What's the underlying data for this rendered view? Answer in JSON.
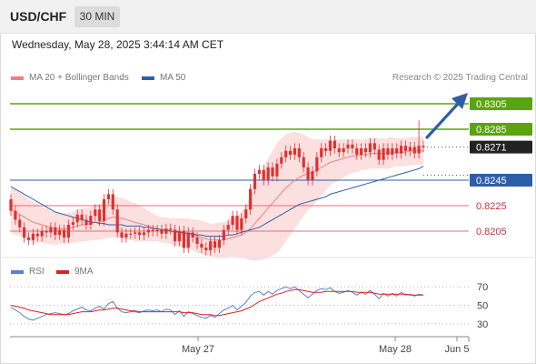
{
  "header": {
    "symbol": "USD/CHF",
    "timeframe": "30 MIN"
  },
  "datetime": "Wednesday, May 28, 2025 3:44:14 AM CET",
  "legend": {
    "ma20": "MA 20 + Bollinger Bands",
    "ma50": "MA 50"
  },
  "credit": "Research © 2025 Trading Central",
  "rsi_legend": {
    "rsi": "RSI",
    "ma": "9MA"
  },
  "colors": {
    "green": "#5aa50f",
    "blue": "#2f5ea8",
    "red": "#e0707c",
    "band": "#fbd9d9",
    "arrow": "#2f5ea8",
    "candle": "#e03030"
  },
  "chart_data": [
    {
      "type": "candlestick",
      "title": "USD/CHF",
      "ylim": [
        0.819,
        0.8315
      ],
      "current_price": 0.8271,
      "levels": [
        {
          "label": "0.8305",
          "value": 0.8305,
          "kind": "resistance",
          "color": "#5aa50f"
        },
        {
          "label": "0.8285",
          "value": 0.8285,
          "kind": "resistance",
          "color": "#5aa50f"
        },
        {
          "label": "0.8271",
          "value": 0.8271,
          "kind": "current",
          "color": "#222222"
        },
        {
          "label": "0.8245",
          "value": 0.8245,
          "kind": "pivot",
          "color": "#2f5ea8"
        },
        {
          "label": "0.8225",
          "value": 0.8225,
          "kind": "support",
          "color": "#e0707c"
        },
        {
          "label": "0.8205",
          "value": 0.8205,
          "kind": "support",
          "color": "#e0707c"
        }
      ],
      "x_ticks": [
        "May 27",
        "May 28",
        "Jun 5"
      ],
      "candles": [
        [
          0.823,
          0.8221
        ],
        [
          0.8221,
          0.8214
        ],
        [
          0.8214,
          0.8208
        ],
        [
          0.8208,
          0.82
        ],
        [
          0.82,
          0.8198
        ],
        [
          0.8198,
          0.8203
        ],
        [
          0.8203,
          0.8201
        ],
        [
          0.8201,
          0.8205
        ],
        [
          0.8205,
          0.8204
        ],
        [
          0.8204,
          0.8208
        ],
        [
          0.8208,
          0.8202
        ],
        [
          0.8202,
          0.8206
        ],
        [
          0.8206,
          0.82
        ],
        [
          0.82,
          0.821
        ],
        [
          0.821,
          0.8212
        ],
        [
          0.8212,
          0.8218
        ],
        [
          0.8218,
          0.8214
        ],
        [
          0.8214,
          0.821
        ],
        [
          0.821,
          0.8217
        ],
        [
          0.8217,
          0.8222
        ],
        [
          0.8222,
          0.8213
        ],
        [
          0.8213,
          0.823
        ],
        [
          0.823,
          0.8234
        ],
        [
          0.8234,
          0.8222
        ],
        [
          0.8222,
          0.8204
        ],
        [
          0.8204,
          0.82
        ],
        [
          0.82,
          0.8203
        ],
        [
          0.8203,
          0.8203
        ],
        [
          0.8203,
          0.8204
        ],
        [
          0.8204,
          0.8202
        ],
        [
          0.8202,
          0.8204
        ],
        [
          0.8204,
          0.8206
        ],
        [
          0.8206,
          0.8205
        ],
        [
          0.8205,
          0.8206
        ],
        [
          0.8206,
          0.8203
        ],
        [
          0.8203,
          0.8207
        ],
        [
          0.8207,
          0.8206
        ],
        [
          0.8206,
          0.8197
        ],
        [
          0.8197,
          0.8205
        ],
        [
          0.8205,
          0.8192
        ],
        [
          0.8192,
          0.8204
        ],
        [
          0.8204,
          0.82
        ],
        [
          0.82,
          0.8195
        ],
        [
          0.8195,
          0.8192
        ],
        [
          0.8192,
          0.819
        ],
        [
          0.819,
          0.8197
        ],
        [
          0.8197,
          0.8192
        ],
        [
          0.8192,
          0.8198
        ],
        [
          0.8198,
          0.8206
        ],
        [
          0.8206,
          0.821
        ],
        [
          0.821,
          0.8217
        ],
        [
          0.8217,
          0.8206
        ],
        [
          0.8206,
          0.8215
        ],
        [
          0.8215,
          0.8222
        ],
        [
          0.8222,
          0.8238
        ],
        [
          0.8238,
          0.825
        ],
        [
          0.825,
          0.8253
        ],
        [
          0.8253,
          0.8245
        ],
        [
          0.8245,
          0.8255
        ],
        [
          0.8255,
          0.8248
        ],
        [
          0.8248,
          0.8258
        ],
        [
          0.8258,
          0.8263
        ],
        [
          0.8263,
          0.8268
        ],
        [
          0.8268,
          0.8265
        ],
        [
          0.8265,
          0.827
        ],
        [
          0.827,
          0.8263
        ],
        [
          0.8263,
          0.8255
        ],
        [
          0.8255,
          0.8245
        ],
        [
          0.8245,
          0.8252
        ],
        [
          0.8252,
          0.8263
        ],
        [
          0.8263,
          0.827
        ],
        [
          0.827,
          0.8268
        ],
        [
          0.8268,
          0.8276
        ],
        [
          0.8276,
          0.827
        ],
        [
          0.827,
          0.8267
        ],
        [
          0.8267,
          0.827
        ],
        [
          0.827,
          0.8273
        ],
        [
          0.8273,
          0.827
        ],
        [
          0.827,
          0.8265
        ],
        [
          0.8265,
          0.827
        ],
        [
          0.827,
          0.8267
        ],
        [
          0.8267,
          0.8274
        ],
        [
          0.8274,
          0.8269
        ],
        [
          0.8269,
          0.8261
        ],
        [
          0.8261,
          0.827
        ],
        [
          0.827,
          0.8265
        ],
        [
          0.8265,
          0.827
        ],
        [
          0.827,
          0.8266
        ],
        [
          0.8266,
          0.8272
        ],
        [
          0.8272,
          0.8268
        ],
        [
          0.8268,
          0.8271
        ],
        [
          0.8271,
          0.8266
        ],
        [
          0.8266,
          0.8272
        ],
        [
          0.8272,
          0.8271
        ]
      ],
      "ma20": [
        0.8222,
        0.822,
        0.8218,
        0.8216,
        0.8214,
        0.8212,
        0.8211,
        0.821,
        0.8209,
        0.8208,
        0.8207,
        0.8207,
        0.8207,
        0.8207,
        0.8208,
        0.8209,
        0.821,
        0.821,
        0.8211,
        0.8212,
        0.8212,
        0.8213,
        0.8215,
        0.8216,
        0.8216,
        0.8215,
        0.8214,
        0.8213,
        0.8212,
        0.8211,
        0.821,
        0.8209,
        0.8208,
        0.8207,
        0.8206,
        0.8206,
        0.8205,
        0.8204,
        0.8204,
        0.8203,
        0.8203,
        0.8202,
        0.8201,
        0.82,
        0.8199,
        0.8198,
        0.8198,
        0.8198,
        0.8198,
        0.8199,
        0.82,
        0.8201,
        0.8202,
        0.8204,
        0.8207,
        0.8211,
        0.8215,
        0.8219,
        0.8223,
        0.8227,
        0.8231,
        0.8235,
        0.8239,
        0.8242,
        0.8245,
        0.8247,
        0.8249,
        0.825,
        0.8251,
        0.8253,
        0.8255,
        0.8257,
        0.8259,
        0.826,
        0.8261,
        0.8262,
        0.8263,
        0.8264,
        0.8264,
        0.8265,
        0.8265,
        0.8266,
        0.8266,
        0.8266,
        0.8266,
        0.8266,
        0.8267,
        0.8267,
        0.8267,
        0.8267,
        0.8268,
        0.8268,
        0.8268,
        0.8268
      ],
      "ma50": [
        0.824,
        0.8238,
        0.8236,
        0.8234,
        0.8232,
        0.823,
        0.8228,
        0.8226,
        0.8224,
        0.8222,
        0.822,
        0.8219,
        0.8218,
        0.8217,
        0.8216,
        0.8215,
        0.8214,
        0.8213,
        0.8212,
        0.8212,
        0.8211,
        0.8211,
        0.821,
        0.821,
        0.821,
        0.821,
        0.8209,
        0.8209,
        0.8209,
        0.8209,
        0.8208,
        0.8208,
        0.8207,
        0.8207,
        0.8206,
        0.8206,
        0.8205,
        0.8205,
        0.8204,
        0.8204,
        0.8203,
        0.8203,
        0.8202,
        0.8202,
        0.8201,
        0.8201,
        0.8201,
        0.8201,
        0.8201,
        0.8202,
        0.8202,
        0.8203,
        0.8204,
        0.8205,
        0.8206,
        0.8207,
        0.8208,
        0.821,
        0.8212,
        0.8214,
        0.8216,
        0.8218,
        0.822,
        0.8222,
        0.8224,
        0.8226,
        0.8227,
        0.8228,
        0.8229,
        0.823,
        0.8231,
        0.8232,
        0.8234,
        0.8235,
        0.8236,
        0.8237,
        0.8238,
        0.8239,
        0.824,
        0.8241,
        0.8242,
        0.8243,
        0.8244,
        0.8245,
        0.8246,
        0.8247,
        0.8248,
        0.8249,
        0.825,
        0.8251,
        0.8252,
        0.8253,
        0.8254,
        0.8256
      ],
      "band_width": [
        0.0018,
        0.0018,
        0.0017,
        0.0017,
        0.0016,
        0.0016,
        0.0015,
        0.0014,
        0.0014,
        0.0013,
        0.0013,
        0.0012,
        0.0012,
        0.0012,
        0.0012,
        0.0013,
        0.0013,
        0.0013,
        0.0013,
        0.0014,
        0.0014,
        0.0014,
        0.0015,
        0.0016,
        0.0016,
        0.0016,
        0.0016,
        0.0015,
        0.0015,
        0.0014,
        0.0013,
        0.0012,
        0.0011,
        0.001,
        0.001,
        0.001,
        0.001,
        0.0011,
        0.0011,
        0.0012,
        0.0012,
        0.0012,
        0.0013,
        0.0013,
        0.0013,
        0.0013,
        0.0013,
        0.0014,
        0.0014,
        0.0014,
        0.0015,
        0.0016,
        0.0018,
        0.0021,
        0.0025,
        0.0029,
        0.0033,
        0.0036,
        0.0039,
        0.0041,
        0.0043,
        0.0043,
        0.0042,
        0.004,
        0.0038,
        0.0035,
        0.0032,
        0.0029,
        0.0026,
        0.0024,
        0.0022,
        0.002,
        0.0018,
        0.0017,
        0.0016,
        0.0015,
        0.0014,
        0.0013,
        0.0013,
        0.0012,
        0.0012,
        0.0012,
        0.0012,
        0.0012,
        0.0012,
        0.0012,
        0.0012,
        0.0011,
        0.0011,
        0.0011,
        0.0011,
        0.0011,
        0.0011,
        0.0011
      ]
    },
    {
      "type": "line",
      "title": "RSI",
      "ylim": [
        20,
        80
      ],
      "y_ticks": [
        70,
        50,
        30
      ],
      "series": [
        {
          "name": "RSI",
          "color": "#5b7fd6",
          "values": [
            48,
            45,
            42,
            38,
            35,
            34,
            36,
            38,
            40,
            41,
            42,
            41,
            40,
            41,
            44,
            46,
            48,
            45,
            44,
            47,
            49,
            46,
            52,
            54,
            47,
            43,
            42,
            43,
            43,
            42,
            44,
            45,
            44,
            45,
            43,
            46,
            45,
            40,
            44,
            38,
            43,
            41,
            39,
            37,
            36,
            39,
            37,
            41,
            45,
            47,
            50,
            45,
            49,
            53,
            60,
            64,
            65,
            61,
            65,
            62,
            66,
            68,
            70,
            68,
            70,
            66,
            62,
            58,
            62,
            66,
            68,
            67,
            69,
            65,
            63,
            64,
            66,
            64,
            61,
            64,
            62,
            66,
            62,
            57,
            63,
            60,
            63,
            60,
            64,
            61,
            62,
            60,
            62,
            61
          ]
        },
        {
          "name": "9MA",
          "color": "#e02020",
          "values": [
            50,
            49,
            48,
            47,
            45,
            44,
            43,
            42,
            41,
            40,
            40,
            40,
            40,
            40,
            41,
            42,
            43,
            43,
            43,
            44,
            45,
            45,
            46,
            47,
            47,
            46,
            45,
            44,
            44,
            43,
            43,
            43,
            43,
            43,
            43,
            43,
            43,
            43,
            43,
            42,
            42,
            42,
            41,
            40,
            40,
            40,
            39,
            39,
            40,
            41,
            42,
            43,
            44,
            46,
            48,
            51,
            54,
            56,
            58,
            60,
            62,
            63,
            65,
            66,
            67,
            67,
            66,
            65,
            64,
            64,
            64,
            65,
            65,
            65,
            65,
            65,
            65,
            65,
            64,
            64,
            64,
            64,
            63,
            62,
            62,
            62,
            62,
            62,
            62,
            62,
            61,
            61,
            61,
            61
          ]
        }
      ]
    }
  ]
}
